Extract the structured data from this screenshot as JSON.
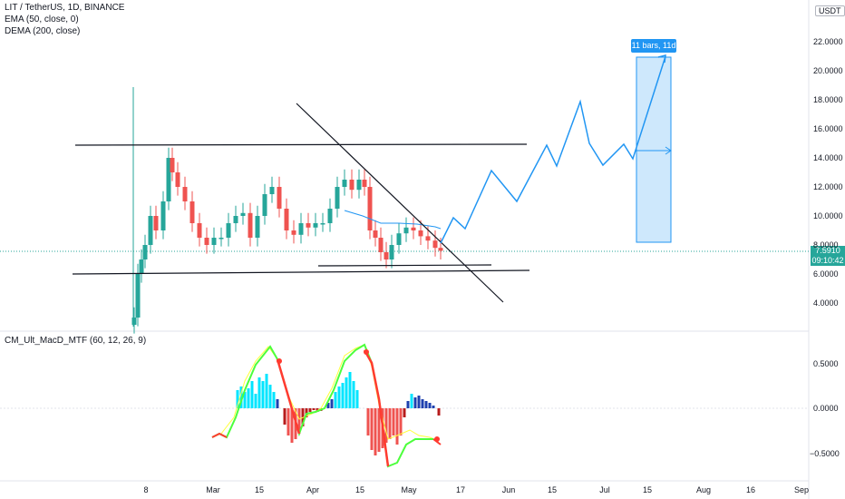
{
  "legend": {
    "symbol": "LIT / TetherUS, 1D, BINANCE",
    "ema": "EMA (50, close, 0)",
    "dema": "DEMA (200, close)"
  },
  "oscillator": {
    "title": "CM_Ult_MacD_MTF (60, 12, 26, 9)"
  },
  "price_axis": {
    "currency": "USDT",
    "ticks": [
      "22.0000",
      "20.0000",
      "18.0000",
      "16.0000",
      "14.0000",
      "12.0000",
      "10.0000",
      "8.0000",
      "6.0000",
      "4.0000"
    ],
    "last_price": "7.5910",
    "countdown": "09:10:42"
  },
  "osc_axis": {
    "ticks": [
      "0.5000",
      "0.0000",
      "−0.5000"
    ]
  },
  "time_axis": {
    "ticks": [
      "8",
      "Mar",
      "15",
      "Apr",
      "15",
      "May",
      "17",
      "Jun",
      "15",
      "Jul",
      "15",
      "Aug",
      "16",
      "Sep"
    ]
  },
  "projection": {
    "label": "11 bars, 11d"
  },
  "colors": {
    "bull": "#26a69a",
    "bear": "#ef5350",
    "trend_line": "#131722",
    "ema": "#2196f3",
    "projection": "#2196f3",
    "price_line": "#26a69a",
    "hist_pos_strong": "#00e5ff",
    "hist_pos_weak": "#1e40af",
    "hist_neg_strong": "#ef5350",
    "hist_neg_weak": "#b71c1c",
    "macd_up": "#4cff3c",
    "macd_down": "#ff3b30",
    "signal": "#ffff3a"
  }
}
